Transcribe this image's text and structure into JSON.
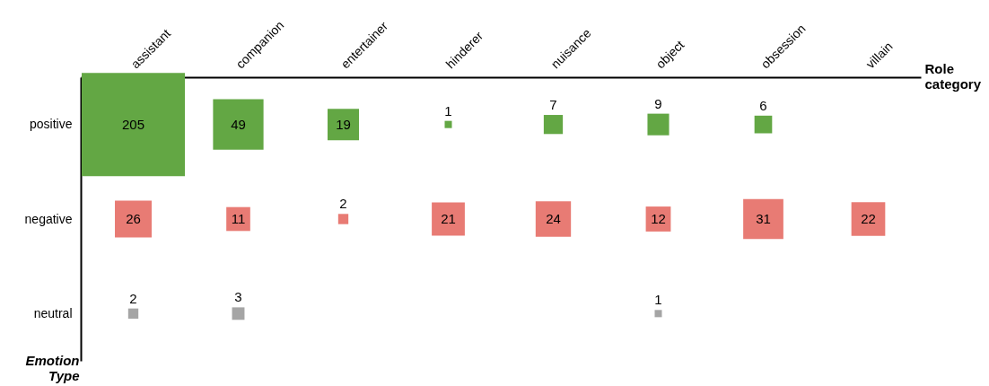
{
  "chart_data": {
    "type": "heatmap",
    "xlabel": "Role category",
    "ylabel": "Emotion Type",
    "categories": [
      "assistant",
      "companion",
      "entertainer",
      "hinderer",
      "nuisance",
      "object",
      "obsession",
      "villain"
    ],
    "y_categories": [
      "positive",
      "negative",
      "neutral"
    ],
    "cells": [
      [
        205,
        49,
        19,
        1,
        7,
        9,
        6,
        null
      ],
      [
        26,
        11,
        2,
        21,
        24,
        12,
        31,
        22
      ],
      [
        2,
        3,
        null,
        null,
        null,
        1,
        null,
        null
      ]
    ],
    "colors": [
      "#63a744",
      "#e87b74",
      "#a5a5a5"
    ],
    "data_labels": true
  }
}
